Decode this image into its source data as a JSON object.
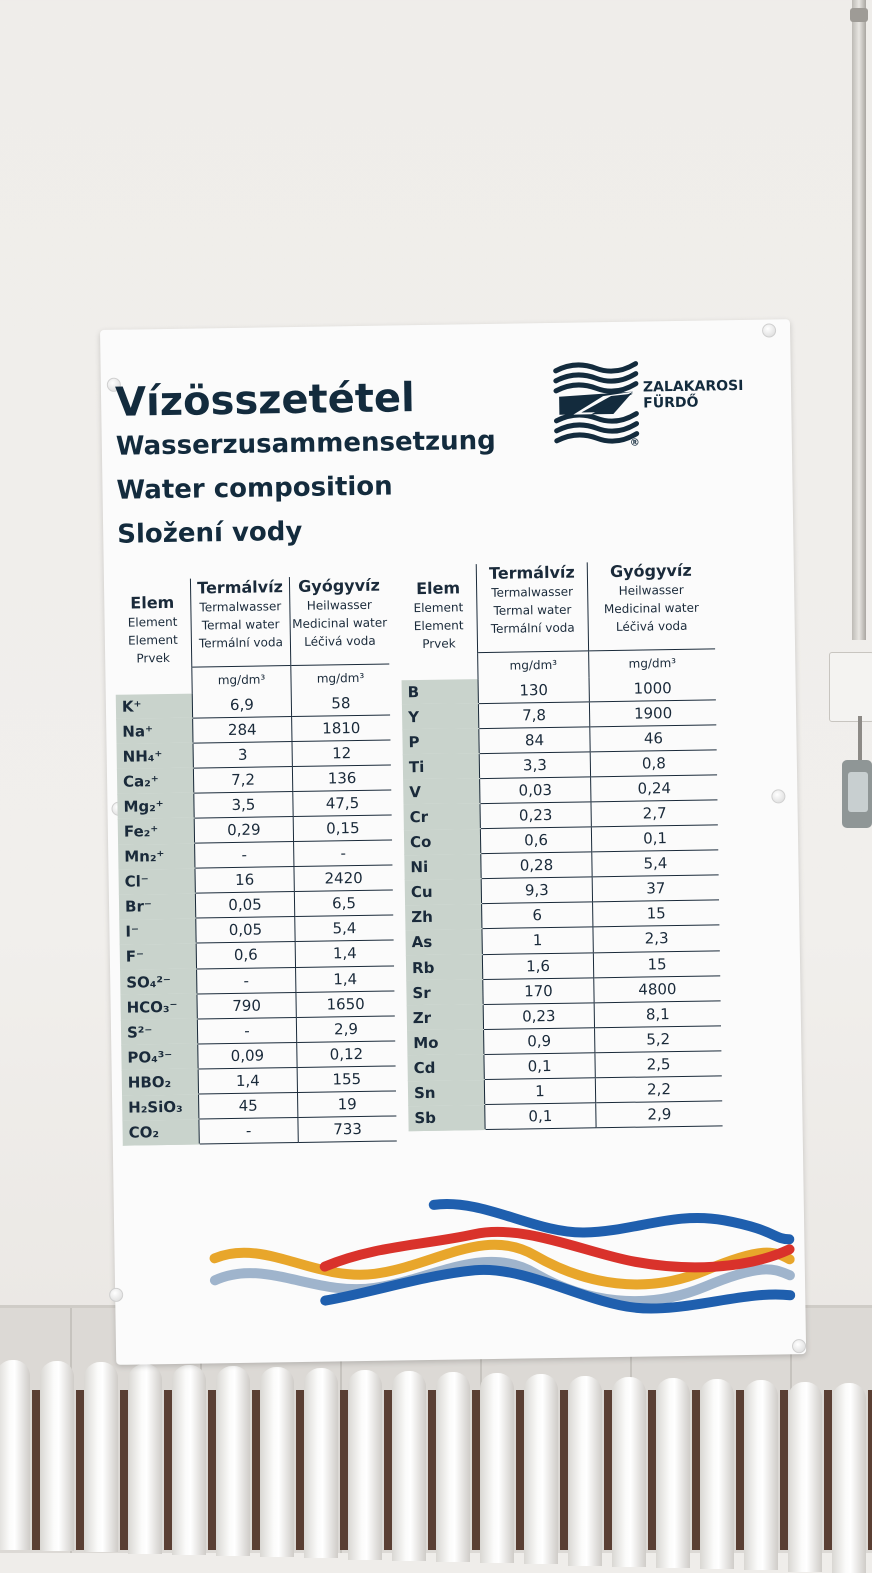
{
  "board": {
    "title_hu": "Vízösszetétel",
    "title_de": "Wasserzusammensetzung",
    "title_en": "Water composition",
    "title_cs": "Složení vody",
    "logo": {
      "line1": "ZALAKAROSI",
      "line2": "FÜRDŐ",
      "mark": "®"
    }
  },
  "headers": {
    "elem": {
      "main": "Elem",
      "l1": "Element",
      "l2": "Element",
      "l3": "Prvek"
    },
    "thermal": {
      "main": "Termálvíz",
      "l1": "Termalwasser",
      "l2": "Termal water",
      "l3": "Termální voda"
    },
    "medicinal": {
      "main": "Gyógyvíz",
      "l1": "Heilwasser",
      "l2": "Medicinal water",
      "l3": "Léčivá voda"
    },
    "unit": "mg/dm³"
  },
  "left_rows": [
    {
      "el": "K⁺",
      "t": "6,9",
      "m": "58"
    },
    {
      "el": "Na⁺",
      "t": "284",
      "m": "1810"
    },
    {
      "el": "NH₄⁺",
      "t": "3",
      "m": "12"
    },
    {
      "el": "Ca₂⁺",
      "t": "7,2",
      "m": "136"
    },
    {
      "el": "Mg₂⁺",
      "t": "3,5",
      "m": "47,5"
    },
    {
      "el": "Fe₂⁺",
      "t": "0,29",
      "m": "0,15"
    },
    {
      "el": "Mn₂⁺",
      "t": "-",
      "m": "-"
    },
    {
      "el": "Cl⁻",
      "t": "16",
      "m": "2420"
    },
    {
      "el": "Br⁻",
      "t": "0,05",
      "m": "6,5"
    },
    {
      "el": "I⁻",
      "t": "0,05",
      "m": "5,4"
    },
    {
      "el": "F⁻",
      "t": "0,6",
      "m": "1,4"
    },
    {
      "el": "SO₄²⁻",
      "t": "-",
      "m": "1,4"
    },
    {
      "el": "HCO₃⁻",
      "t": "790",
      "m": "1650"
    },
    {
      "el": "S²⁻",
      "t": "-",
      "m": "2,9"
    },
    {
      "el": "PO₄³⁻",
      "t": "0,09",
      "m": "0,12"
    },
    {
      "el": "HBO₂",
      "t": "1,4",
      "m": "155"
    },
    {
      "el": "H₂SiO₃",
      "t": "45",
      "m": "19"
    },
    {
      "el": "CO₂",
      "t": "-",
      "m": "733"
    }
  ],
  "right_rows": [
    {
      "el": "B",
      "t": "130",
      "m": "1000"
    },
    {
      "el": "Y",
      "t": "7,8",
      "m": "1900"
    },
    {
      "el": "P",
      "t": "84",
      "m": "46"
    },
    {
      "el": "Ti",
      "t": "3,3",
      "m": "0,8"
    },
    {
      "el": "V",
      "t": "0,03",
      "m": "0,24"
    },
    {
      "el": "Cr",
      "t": "0,23",
      "m": "2,7"
    },
    {
      "el": "Co",
      "t": "0,6",
      "m": "0,1"
    },
    {
      "el": "Ni",
      "t": "0,28",
      "m": "5,4"
    },
    {
      "el": "Cu",
      "t": "9,3",
      "m": "37"
    },
    {
      "el": "Zh",
      "t": "6",
      "m": "15"
    },
    {
      "el": "As",
      "t": "1",
      "m": "2,3"
    },
    {
      "el": "Rb",
      "t": "1,6",
      "m": "15"
    },
    {
      "el": "Sr",
      "t": "170",
      "m": "4800"
    },
    {
      "el": "Zr",
      "t": "0,23",
      "m": "8,1"
    },
    {
      "el": "Mo",
      "t": "0,9",
      "m": "5,2"
    },
    {
      "el": "Cd",
      "t": "0,1",
      "m": "2,5"
    },
    {
      "el": "Sn",
      "t": "1",
      "m": "2,2"
    },
    {
      "el": "Sb",
      "t": "0,1",
      "m": "2,9"
    }
  ],
  "colors": {
    "navy": "#132b3d",
    "cell_green": "#c9d3cc",
    "wave_blue": "#1f5fae",
    "wave_red": "#d9322b",
    "wave_yellow": "#e8a62b",
    "wave_light": "#9fb4cc"
  }
}
